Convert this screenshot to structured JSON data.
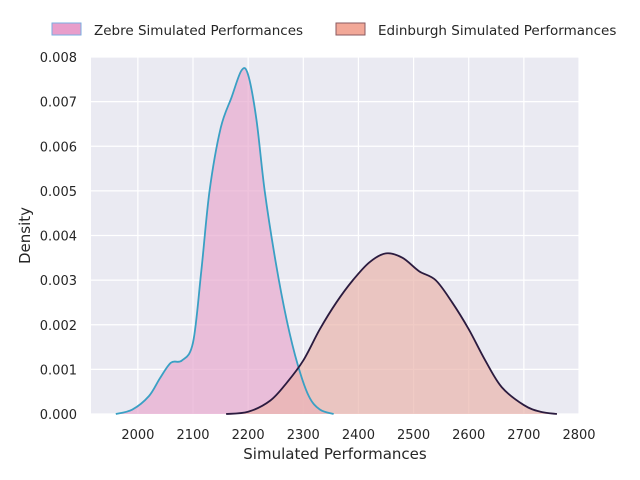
{
  "chart_data": {
    "type": "area",
    "chart_kind": "kde-density",
    "xlabel": "Simulated Performances",
    "ylabel": "Density",
    "xlim": [
      1915,
      2800
    ],
    "ylim": [
      0,
      0.008
    ],
    "x_ticks": [
      2000,
      2100,
      2200,
      2300,
      2400,
      2500,
      2600,
      2700,
      2800
    ],
    "y_ticks": [
      0.0,
      0.001,
      0.002,
      0.003,
      0.004,
      0.005,
      0.006,
      0.007,
      0.008
    ],
    "y_tick_labels": [
      "0.000",
      "0.001",
      "0.002",
      "0.003",
      "0.004",
      "0.005",
      "0.006",
      "0.007",
      "0.008"
    ],
    "grid": true,
    "legend_position": "top",
    "background": "#eaeaf2",
    "series": [
      {
        "name": "Zebre Simulated Performances",
        "fill": "#e8a9cf",
        "line": "#3aa0c4",
        "legend_fill": "#e89ecb",
        "legend_edge": "#7aaee0",
        "points": [
          [
            1960,
            0.0
          ],
          [
            1990,
            0.0001
          ],
          [
            2020,
            0.0004
          ],
          [
            2040,
            0.0008
          ],
          [
            2060,
            0.00115
          ],
          [
            2080,
            0.0012
          ],
          [
            2100,
            0.0016
          ],
          [
            2115,
            0.0032
          ],
          [
            2130,
            0.005
          ],
          [
            2150,
            0.0064
          ],
          [
            2170,
            0.0071
          ],
          [
            2188,
            0.0077
          ],
          [
            2200,
            0.0076
          ],
          [
            2215,
            0.0066
          ],
          [
            2230,
            0.005
          ],
          [
            2250,
            0.0034
          ],
          [
            2270,
            0.0021
          ],
          [
            2290,
            0.0011
          ],
          [
            2310,
            0.0004
          ],
          [
            2330,
            0.0001
          ],
          [
            2355,
            0.0
          ]
        ]
      },
      {
        "name": "Edinburgh Simulated Performances",
        "fill": "#eab5ad",
        "line": "#2b1b3f",
        "legend_fill": "#f2a898",
        "legend_edge": "#8a5a60",
        "points": [
          [
            2160,
            0.0
          ],
          [
            2200,
            5e-05
          ],
          [
            2240,
            0.0003
          ],
          [
            2270,
            0.0007
          ],
          [
            2300,
            0.0012
          ],
          [
            2330,
            0.0019
          ],
          [
            2360,
            0.0025
          ],
          [
            2390,
            0.003
          ],
          [
            2420,
            0.0034
          ],
          [
            2450,
            0.0036
          ],
          [
            2480,
            0.0035
          ],
          [
            2510,
            0.0032
          ],
          [
            2540,
            0.003
          ],
          [
            2570,
            0.0025
          ],
          [
            2600,
            0.0019
          ],
          [
            2630,
            0.0012
          ],
          [
            2660,
            0.0006
          ],
          [
            2700,
            0.0002
          ],
          [
            2730,
            5e-05
          ],
          [
            2760,
            0.0
          ]
        ]
      }
    ]
  }
}
